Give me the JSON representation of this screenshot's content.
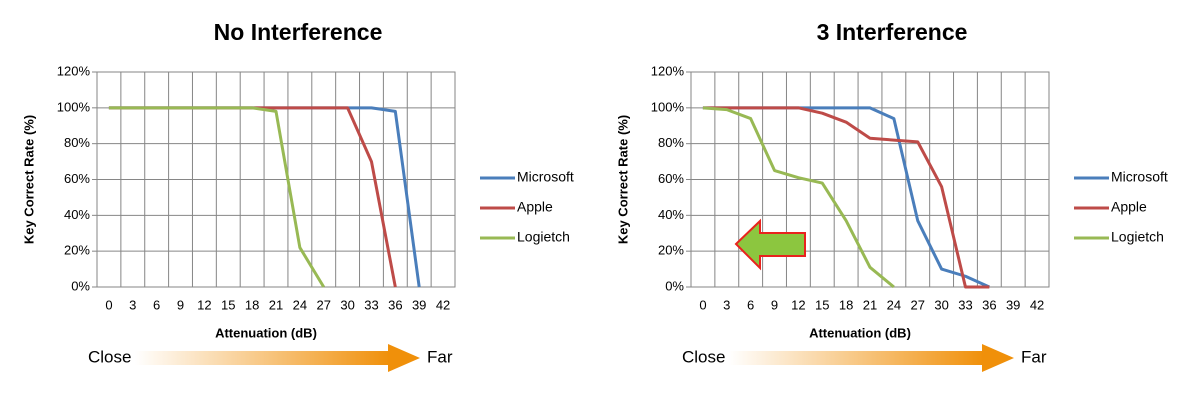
{
  "chart_data": [
    {
      "type": "line",
      "title": "No Interference",
      "x_label": "Attenuation (dB)",
      "y_label": "Key Correct Rate (%)",
      "categories": [
        "0",
        "3",
        "6",
        "9",
        "12",
        "15",
        "18",
        "21",
        "24",
        "27",
        "30",
        "33",
        "36",
        "39",
        "42"
      ],
      "series": [
        {
          "name": "Microsoft",
          "color": "#4a7ebb",
          "values": [
            100,
            100,
            100,
            100,
            100,
            100,
            100,
            100,
            100,
            100,
            100,
            100,
            98,
            0,
            null
          ]
        },
        {
          "name": "Apple",
          "color": "#be4b48",
          "values": [
            100,
            100,
            100,
            100,
            100,
            100,
            100,
            100,
            100,
            100,
            100,
            70,
            0,
            null,
            null
          ]
        },
        {
          "name": "Logietch",
          "color": "#98b954",
          "values": [
            100,
            100,
            100,
            100,
            100,
            100,
            100,
            98,
            22,
            0,
            null,
            null,
            null,
            null,
            null
          ]
        }
      ],
      "ylim": [
        0,
        120
      ],
      "yticks": [
        {
          "value": 0,
          "label": "0%"
        },
        {
          "value": 20,
          "label": "20%"
        },
        {
          "value": 40,
          "label": "40%"
        },
        {
          "value": 60,
          "label": "60%"
        },
        {
          "value": 80,
          "label": "80%"
        },
        {
          "value": 100,
          "label": "100%"
        },
        {
          "value": 120,
          "label": "120%"
        }
      ],
      "grid": true,
      "legend": "right",
      "annotations": [
        "Close",
        "Far"
      ]
    },
    {
      "type": "line",
      "title": "3 Interference",
      "x_label": "Attenuation (dB)",
      "y_label": "Key Correct Rate (%)",
      "categories": [
        "0",
        "3",
        "6",
        "9",
        "12",
        "15",
        "18",
        "21",
        "24",
        "27",
        "30",
        "33",
        "36",
        "39",
        "42"
      ],
      "series": [
        {
          "name": "Microsoft",
          "color": "#4a7ebb",
          "values": [
            100,
            100,
            100,
            100,
            100,
            100,
            100,
            100,
            94,
            37,
            10,
            6,
            0,
            null,
            null
          ]
        },
        {
          "name": "Apple",
          "color": "#be4b48",
          "values": [
            100,
            100,
            100,
            100,
            100,
            97,
            92,
            83,
            82,
            81,
            56,
            0,
            0,
            null,
            null
          ]
        },
        {
          "name": "Logietch",
          "color": "#98b954",
          "values": [
            100,
            99,
            94,
            65,
            61,
            58,
            37,
            11,
            0,
            null,
            null,
            null,
            null,
            null,
            null
          ]
        }
      ],
      "ylim": [
        0,
        120
      ],
      "yticks": [
        {
          "value": 0,
          "label": "0%"
        },
        {
          "value": 20,
          "label": "20%"
        },
        {
          "value": 40,
          "label": "40%"
        },
        {
          "value": 60,
          "label": "60%"
        },
        {
          "value": 80,
          "label": "80%"
        },
        {
          "value": 100,
          "label": "100%"
        },
        {
          "value": 120,
          "label": "120%"
        }
      ],
      "grid": true,
      "legend": "right",
      "annotations": [
        "Close",
        "Far"
      ]
    }
  ]
}
